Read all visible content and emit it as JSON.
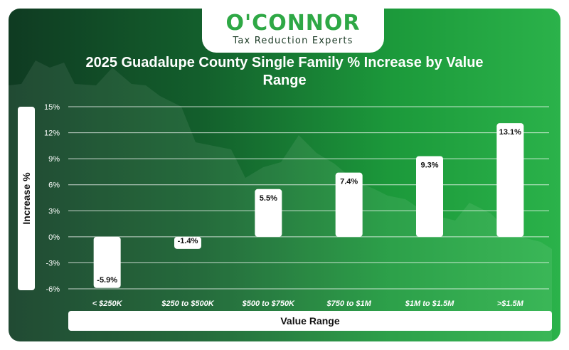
{
  "logo": {
    "name": "O'CONNOR",
    "tagline": "Tax Reduction Experts"
  },
  "chart_data": {
    "type": "bar",
    "title": "2025 Guadalupe County Single Family % Increase by Value Range",
    "xlabel": "Value Range",
    "ylabel": "Increase %",
    "categories": [
      "< $250K",
      "$250 to $500K",
      "$500 to $750K",
      "$750 to $1M",
      "$1M to $1.5M",
      ">$1.5M"
    ],
    "values": [
      -5.9,
      -1.4,
      5.5,
      7.4,
      9.3,
      13.1
    ],
    "value_labels": [
      "-5.9%",
      "-1.4%",
      "5.5%",
      "7.4%",
      "9.3%",
      "13.1%"
    ],
    "ylim": [
      -6,
      15
    ],
    "yticks": [
      15,
      12,
      9,
      6,
      3,
      0,
      -3,
      -6
    ],
    "ytick_labels": [
      "15%",
      "12%",
      "9%",
      "6%",
      "3%",
      "0%",
      "-3%",
      "-6%"
    ],
    "grid": true,
    "bar_color": "#ffffff",
    "background_color": "#1c8a38"
  }
}
